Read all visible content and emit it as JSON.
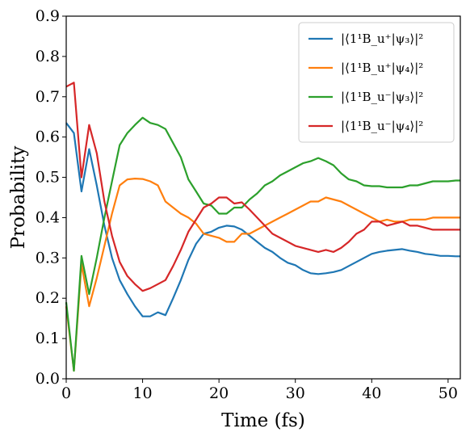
{
  "chart_data": {
    "type": "line",
    "xlabel": "Time (fs)",
    "ylabel": "Probability",
    "xlim": [
      0,
      51.6
    ],
    "ylim": [
      0,
      0.9
    ],
    "xticks": [
      "0",
      "10",
      "20",
      "30",
      "40",
      "50"
    ],
    "yticks": [
      "0.0",
      "0.1",
      "0.2",
      "0.3",
      "0.4",
      "0.5",
      "0.6",
      "0.7",
      "0.8",
      "0.9"
    ],
    "grid": false,
    "legend_position": "top-right",
    "x": [
      0,
      1,
      2,
      3,
      4,
      5,
      6,
      7,
      8,
      9,
      10,
      11,
      12,
      13,
      14,
      15,
      16,
      17,
      18,
      19,
      20,
      21,
      22,
      23,
      24,
      25,
      26,
      27,
      28,
      29,
      30,
      31,
      32,
      33,
      34,
      35,
      36,
      37,
      38,
      39,
      40,
      41,
      42,
      43,
      44,
      45,
      46,
      47,
      48,
      49,
      50,
      51,
      51.6
    ],
    "series": [
      {
        "name": "|⟨1¹B_u⁺|ψ₃⟩|²",
        "color": "#1f77b4",
        "values": [
          0.635,
          0.61,
          0.465,
          0.57,
          0.48,
          0.38,
          0.3,
          0.245,
          0.21,
          0.18,
          0.155,
          0.155,
          0.165,
          0.158,
          0.2,
          0.245,
          0.295,
          0.335,
          0.36,
          0.365,
          0.375,
          0.38,
          0.378,
          0.37,
          0.355,
          0.34,
          0.325,
          0.315,
          0.3,
          0.288,
          0.282,
          0.27,
          0.262,
          0.26,
          0.262,
          0.265,
          0.27,
          0.28,
          0.29,
          0.3,
          0.31,
          0.315,
          0.318,
          0.32,
          0.322,
          0.318,
          0.315,
          0.31,
          0.308,
          0.305,
          0.305,
          0.304,
          0.304
        ]
      },
      {
        "name": "|⟨1¹B_u⁺|ψ₄⟩|²",
        "color": "#ff7f0e",
        "values": [
          0.18,
          0.02,
          0.285,
          0.18,
          0.25,
          0.33,
          0.41,
          0.48,
          0.495,
          0.497,
          0.496,
          0.49,
          0.48,
          0.44,
          0.425,
          0.41,
          0.4,
          0.385,
          0.36,
          0.355,
          0.35,
          0.34,
          0.34,
          0.36,
          0.36,
          0.37,
          0.38,
          0.39,
          0.4,
          0.41,
          0.42,
          0.43,
          0.44,
          0.44,
          0.45,
          0.445,
          0.44,
          0.43,
          0.42,
          0.41,
          0.4,
          0.39,
          0.395,
          0.39,
          0.39,
          0.395,
          0.395,
          0.395,
          0.4,
          0.4,
          0.4,
          0.4,
          0.4
        ]
      },
      {
        "name": "|⟨1¹B_u⁻|ψ₃⟩|²",
        "color": "#2ca02c",
        "values": [
          0.19,
          0.02,
          0.305,
          0.21,
          0.3,
          0.4,
          0.49,
          0.58,
          0.61,
          0.63,
          0.648,
          0.635,
          0.63,
          0.62,
          0.585,
          0.55,
          0.495,
          0.465,
          0.435,
          0.43,
          0.41,
          0.41,
          0.425,
          0.425,
          0.445,
          0.46,
          0.48,
          0.49,
          0.505,
          0.515,
          0.525,
          0.535,
          0.54,
          0.548,
          0.54,
          0.53,
          0.51,
          0.495,
          0.49,
          0.48,
          0.478,
          0.478,
          0.475,
          0.475,
          0.475,
          0.48,
          0.48,
          0.485,
          0.49,
          0.49,
          0.49,
          0.492,
          0.492
        ]
      },
      {
        "name": "|⟨1¹B_u⁻|ψ₄⟩|²",
        "color": "#d62728",
        "values": [
          0.725,
          0.735,
          0.5,
          0.63,
          0.56,
          0.44,
          0.355,
          0.29,
          0.255,
          0.235,
          0.218,
          0.225,
          0.235,
          0.245,
          0.28,
          0.32,
          0.365,
          0.395,
          0.425,
          0.435,
          0.45,
          0.45,
          0.435,
          0.438,
          0.42,
          0.4,
          0.38,
          0.36,
          0.35,
          0.34,
          0.33,
          0.325,
          0.32,
          0.315,
          0.32,
          0.315,
          0.325,
          0.34,
          0.36,
          0.37,
          0.39,
          0.39,
          0.38,
          0.385,
          0.39,
          0.38,
          0.38,
          0.375,
          0.37,
          0.37,
          0.37,
          0.37,
          0.37
        ]
      }
    ]
  }
}
